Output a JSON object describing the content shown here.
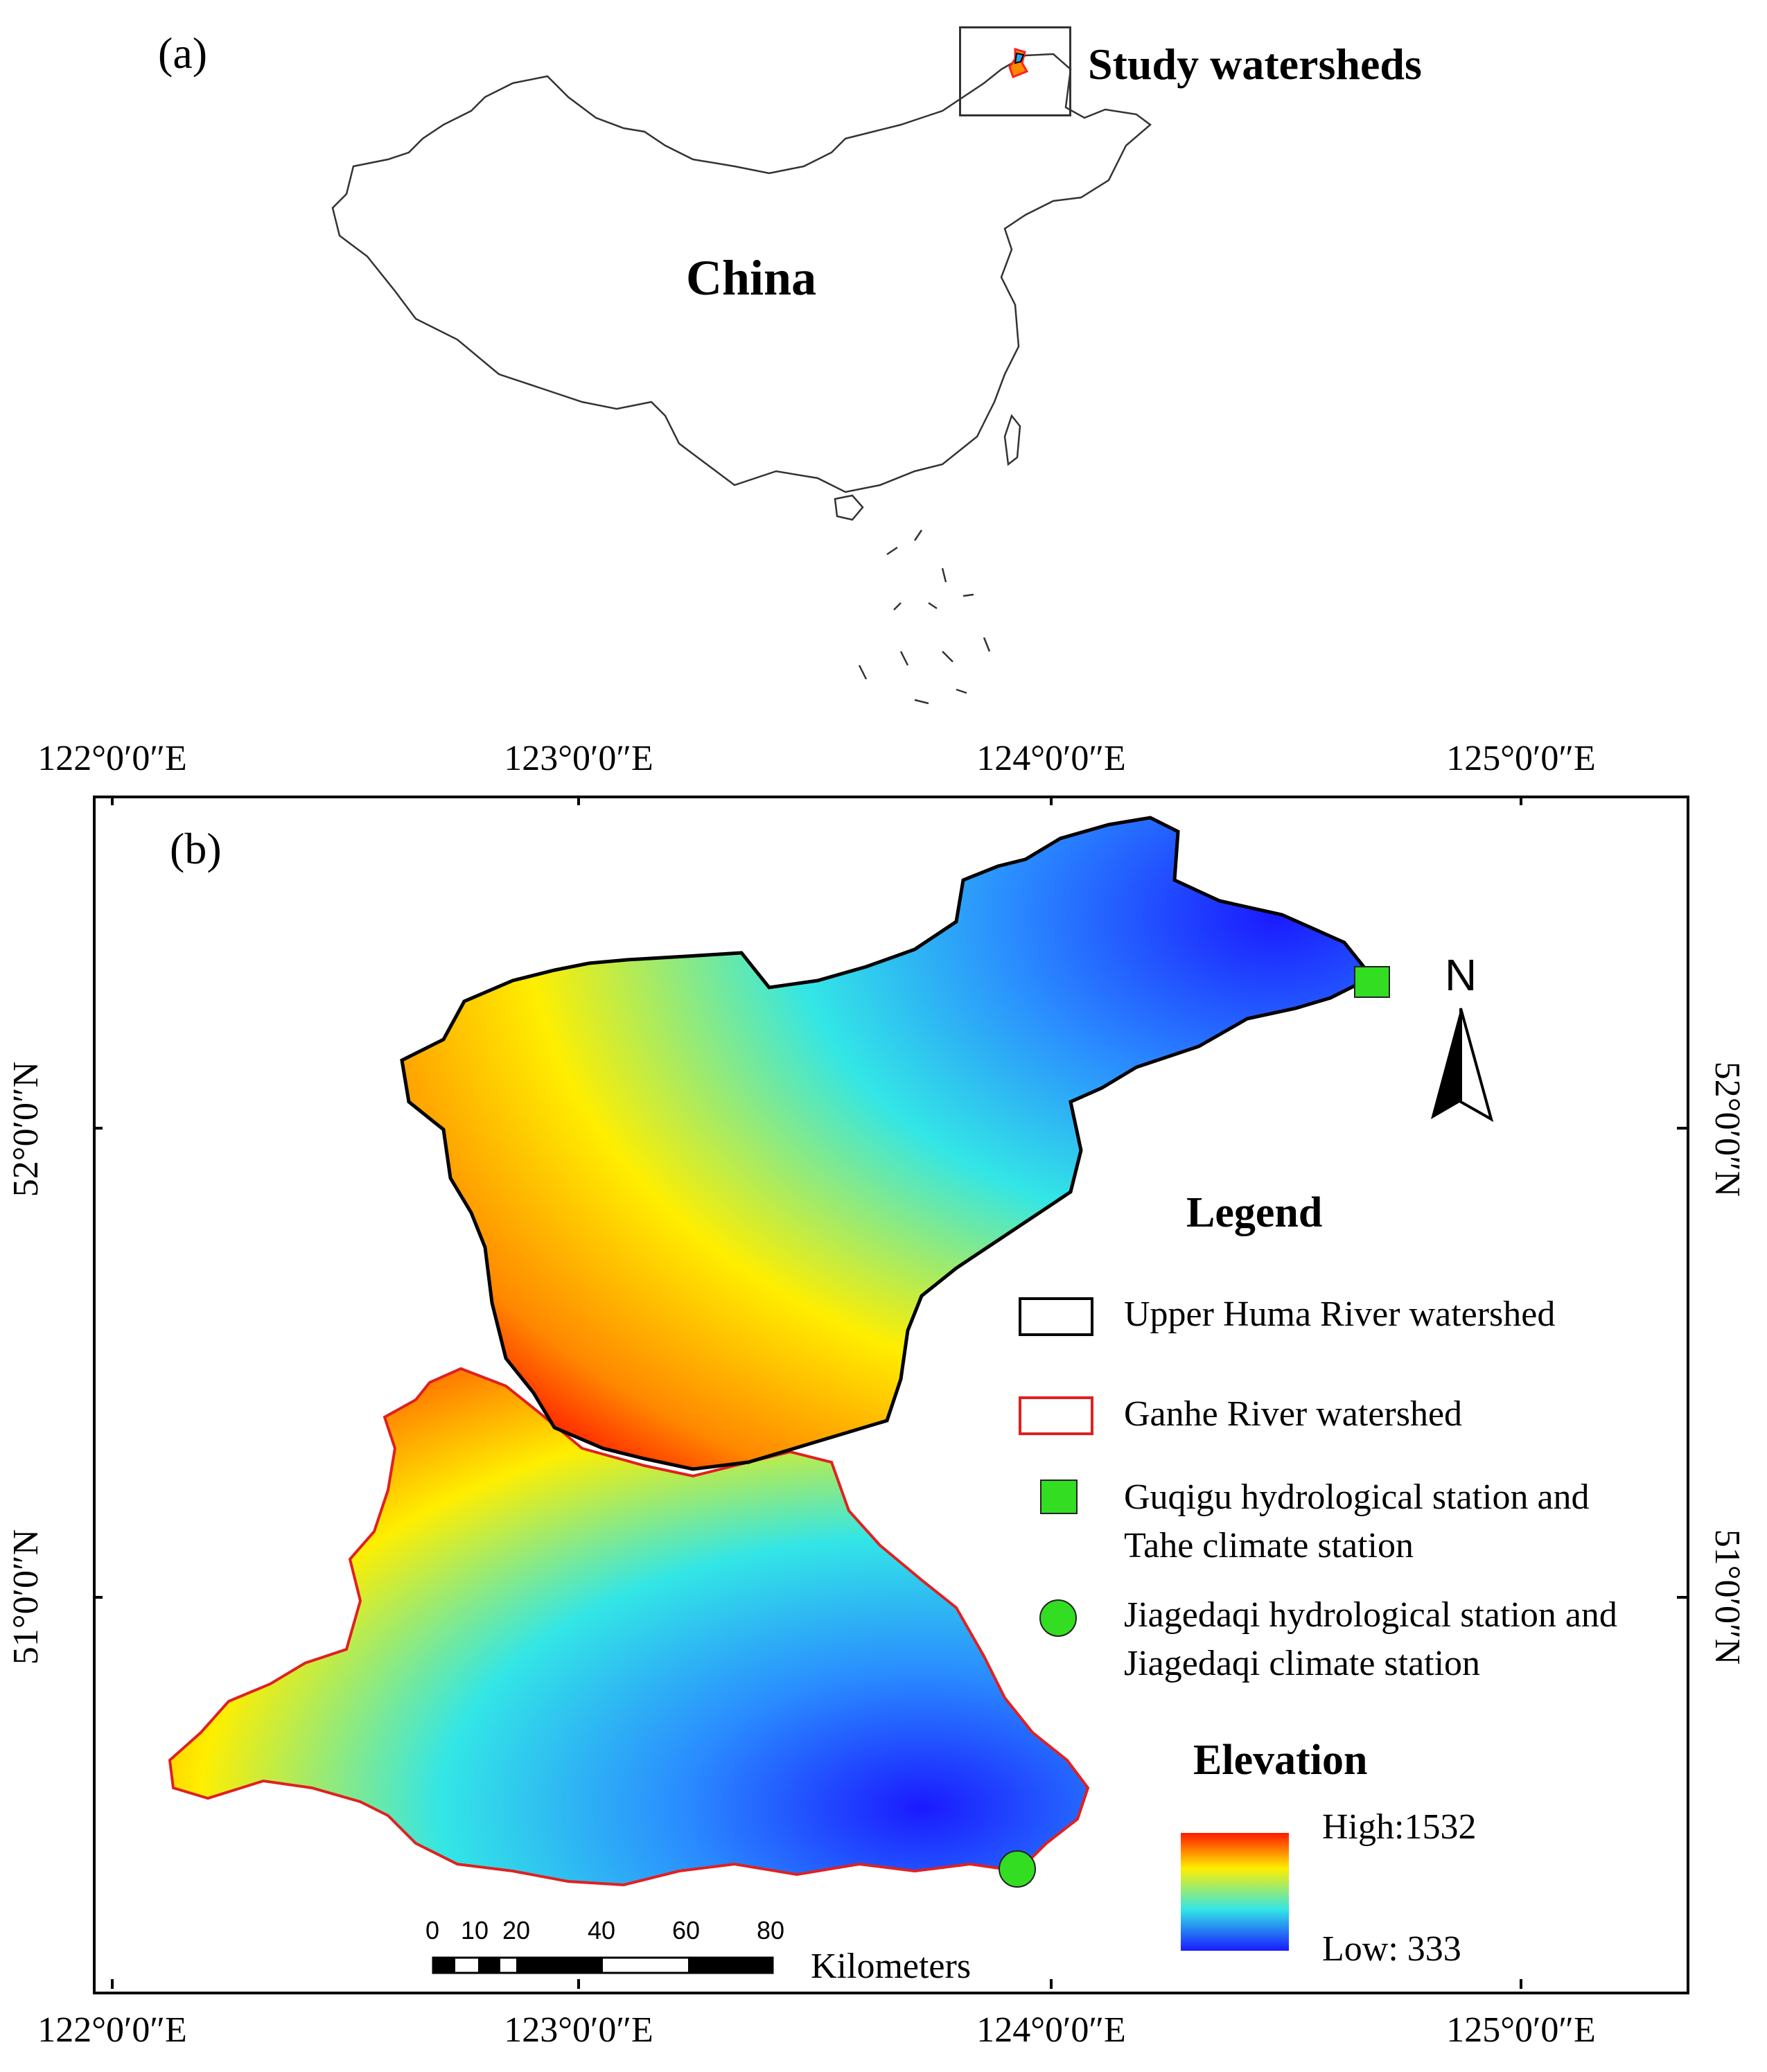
{
  "panel_a": {
    "label": "(a)",
    "country_label": "China",
    "inset_label": "Study watersheds"
  },
  "panel_b": {
    "label": "(b)",
    "longitude_ticks": [
      "122°0′0″E",
      "123°0′0″E",
      "124°0′0″E",
      "125°0′0″E"
    ],
    "latitude_ticks": [
      "52°0′0″N",
      "51°0′0″N"
    ],
    "north_arrow_label": "N",
    "legend": {
      "title": "Legend",
      "items": [
        {
          "label": "Upper Huma River watershed",
          "symbol": "outline-box",
          "color": "#000000"
        },
        {
          "label": "Ganhe River watershed",
          "symbol": "outline-box",
          "color": "#e02020"
        },
        {
          "label_line1": "Guqigu hydrological station and",
          "label_line2": "Tahe climate station",
          "symbol": "square",
          "color": "#33dd22"
        },
        {
          "label_line1": "Jiagedaqi hydrological station and",
          "label_line2": "Jiagedaqi climate station",
          "symbol": "circle",
          "color": "#33dd22"
        }
      ]
    },
    "elevation": {
      "title": "Elevation",
      "high_label": "High:1532",
      "low_label": "Low: 333",
      "colors": [
        "#ff1a00",
        "#ffee00",
        "#33e6e6",
        "#1a1aff"
      ]
    },
    "scale_bar": {
      "ticks": [
        "0",
        "10",
        "20",
        "40",
        "60",
        "80"
      ],
      "unit": "Kilometers"
    }
  }
}
